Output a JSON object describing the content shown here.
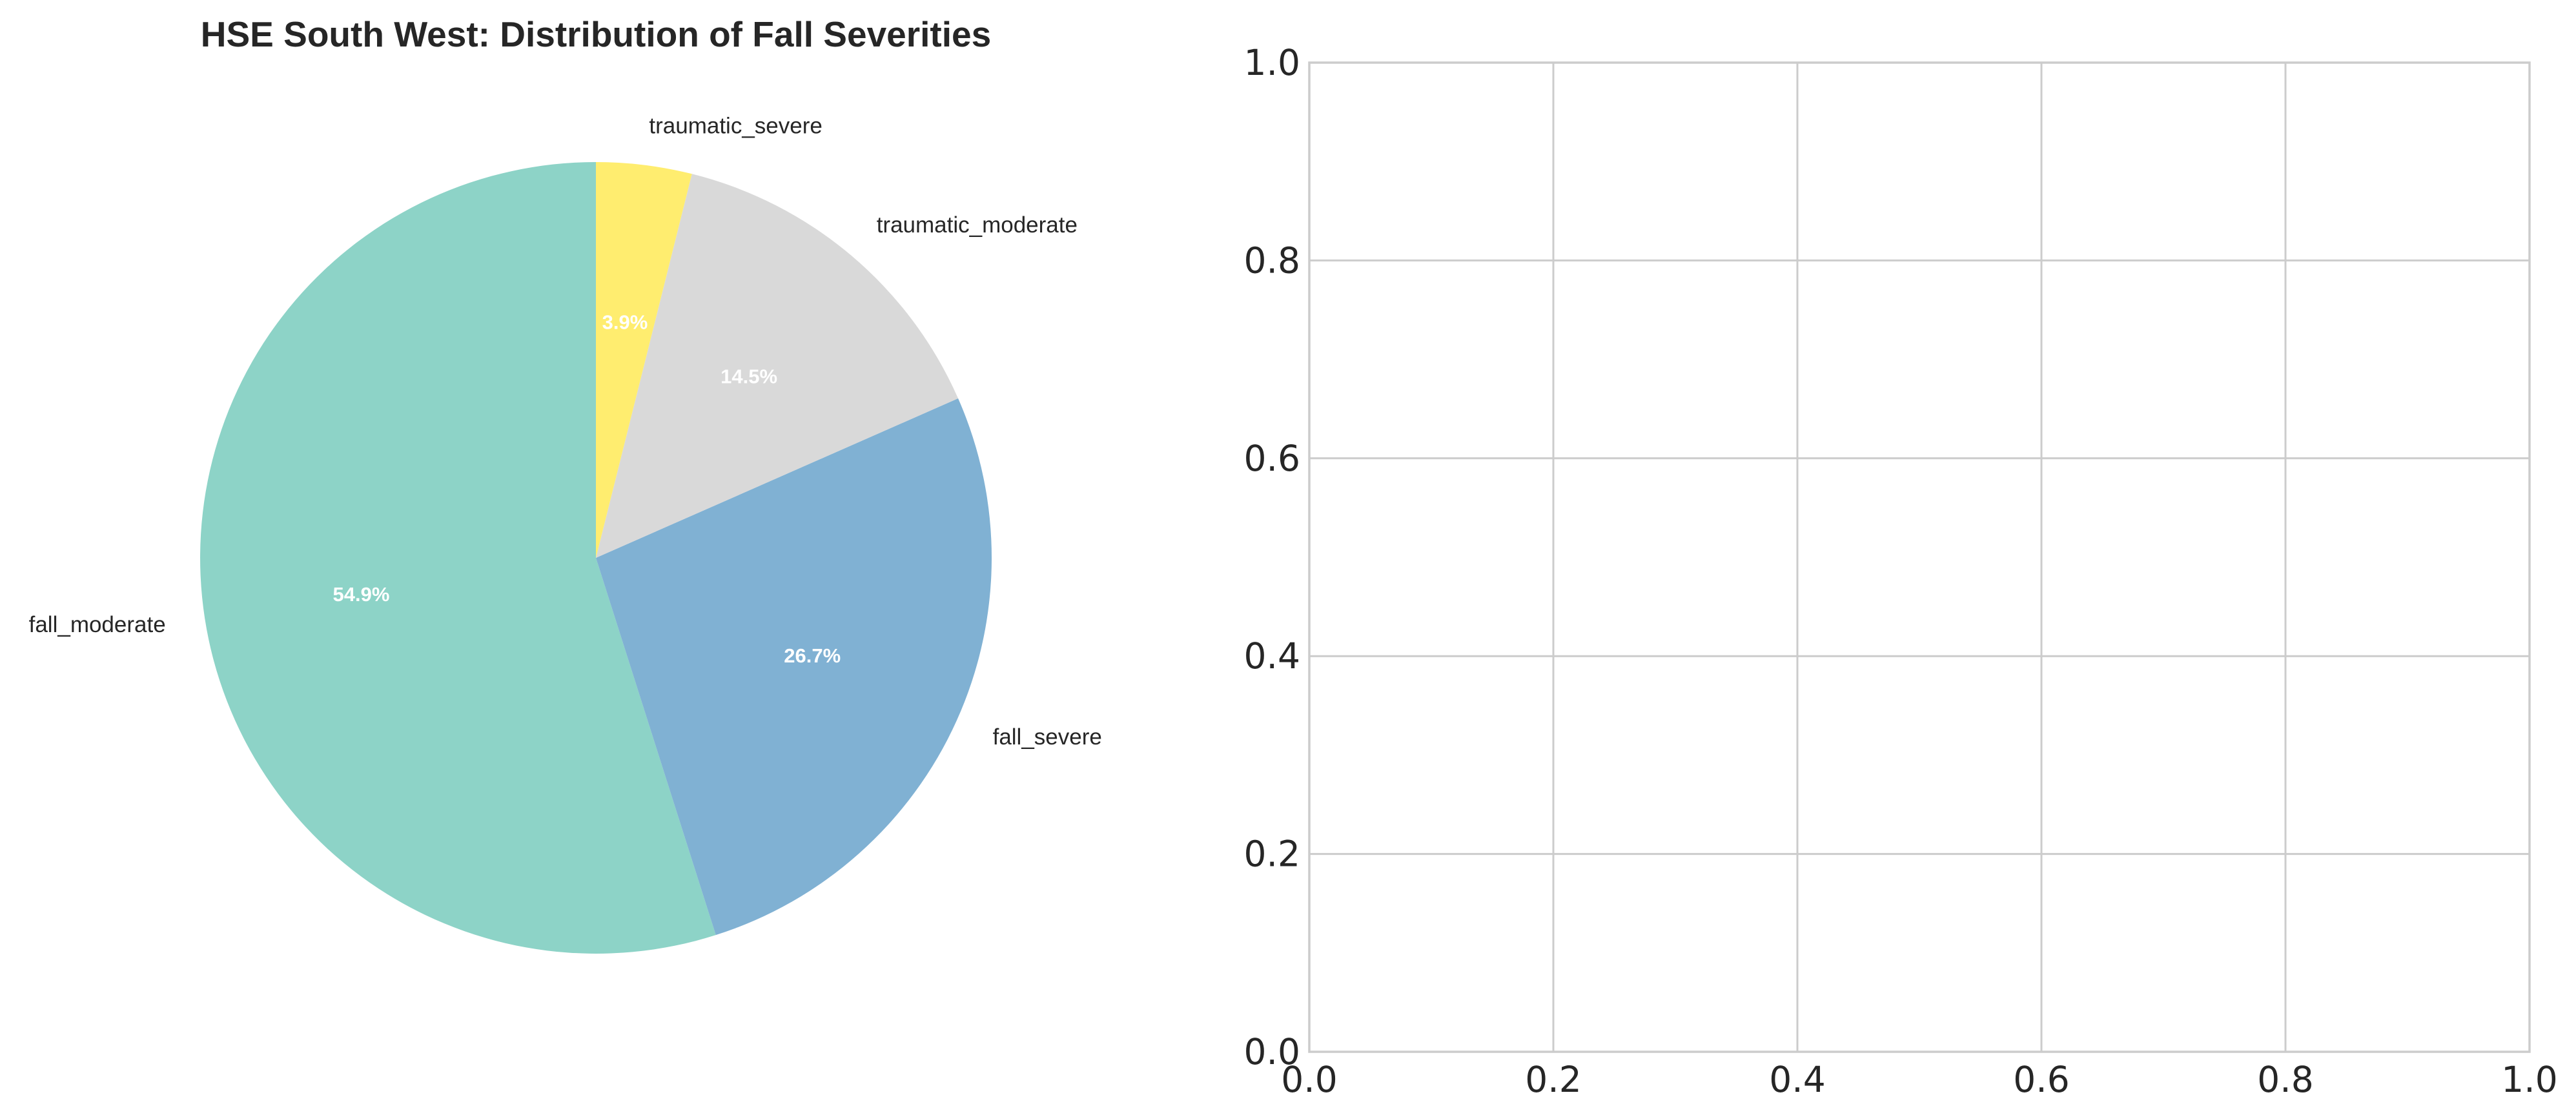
{
  "chart_data": [
    {
      "type": "pie",
      "title": "HSE South West: Distribution of Fall Severities",
      "start_angle_deg": 90,
      "direction": "counterclockwise",
      "slices": [
        {
          "label": "fall_moderate",
          "value": 54.9,
          "pct_label": "54.9%",
          "color": "#8dd3c7"
        },
        {
          "label": "fall_severe",
          "value": 26.7,
          "pct_label": "26.7%",
          "color": "#80b1d3"
        },
        {
          "label": "traumatic_moderate",
          "value": 14.5,
          "pct_label": "14.5%",
          "color": "#d9d9d9"
        },
        {
          "label": "traumatic_severe",
          "value": 3.9,
          "pct_label": "3.9%",
          "color": "#ffed6f"
        }
      ]
    },
    {
      "type": "scatter",
      "title": "",
      "xlabel": "",
      "ylabel": "",
      "xlim": [
        0.0,
        1.0
      ],
      "ylim": [
        0.0,
        1.0
      ],
      "grid": true,
      "xticks": [
        "0.0",
        "0.2",
        "0.4",
        "0.6",
        "0.8",
        "1.0"
      ],
      "yticks": [
        "0.0",
        "0.2",
        "0.4",
        "0.6",
        "0.8",
        "1.0"
      ],
      "series": []
    }
  ]
}
